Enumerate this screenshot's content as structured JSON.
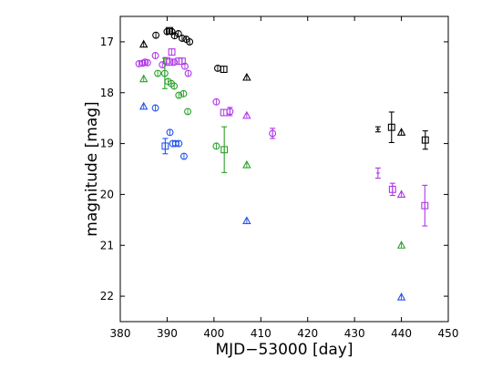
{
  "chart_data": {
    "type": "scatter",
    "title": "",
    "xlabel": "MJD−53000 [day]",
    "ylabel": "magnitude [mag]",
    "xlim": [
      380,
      450
    ],
    "ylim": [
      22.5,
      16.5
    ],
    "y_inverted": true,
    "xticks": [
      380,
      390,
      400,
      410,
      420,
      430,
      440,
      450
    ],
    "yticks": [
      17,
      18,
      19,
      20,
      21,
      22
    ],
    "grid": false,
    "legend": "none",
    "series": [
      {
        "color": "#000000",
        "points": [
          {
            "x": 385.0,
            "y": 17.05,
            "marker": "triangle"
          },
          {
            "x": 387.6,
            "y": 16.87,
            "marker": "circle"
          },
          {
            "x": 390.0,
            "y": 16.8,
            "marker": "circle"
          },
          {
            "x": 390.5,
            "y": 16.78,
            "marker": "square"
          },
          {
            "x": 391.0,
            "y": 16.8,
            "marker": "circle"
          },
          {
            "x": 391.6,
            "y": 16.88,
            "marker": "circle"
          },
          {
            "x": 392.4,
            "y": 16.84,
            "marker": "circle"
          },
          {
            "x": 393.2,
            "y": 16.93,
            "marker": "circle"
          },
          {
            "x": 394.1,
            "y": 16.95,
            "marker": "circle"
          },
          {
            "x": 394.8,
            "y": 17.0,
            "marker": "circle"
          },
          {
            "x": 400.8,
            "y": 17.52,
            "marker": "circle"
          },
          {
            "x": 402.1,
            "y": 17.54,
            "marker": "square"
          },
          {
            "x": 407.0,
            "y": 17.7,
            "marker": "triangle"
          },
          {
            "x": 435.0,
            "y": 18.72,
            "marker": "errorbar",
            "yerr": 0.05
          },
          {
            "x": 437.9,
            "y": 18.68,
            "marker": "square",
            "yerr": 0.3
          },
          {
            "x": 440.0,
            "y": 18.78,
            "marker": "triangle"
          },
          {
            "x": 445.1,
            "y": 18.93,
            "marker": "square",
            "yerr": 0.18
          }
        ]
      },
      {
        "color": "#b036e8",
        "points": [
          {
            "x": 384.0,
            "y": 17.43,
            "marker": "circle"
          },
          {
            "x": 384.8,
            "y": 17.42,
            "marker": "circle"
          },
          {
            "x": 385.3,
            "y": 17.4,
            "marker": "circle"
          },
          {
            "x": 385.8,
            "y": 17.41,
            "marker": "circle"
          },
          {
            "x": 387.5,
            "y": 17.27,
            "marker": "circle"
          },
          {
            "x": 389.0,
            "y": 17.45,
            "marker": "circle"
          },
          {
            "x": 389.9,
            "y": 17.37,
            "marker": "square"
          },
          {
            "x": 390.5,
            "y": 17.4,
            "marker": "square"
          },
          {
            "x": 391.0,
            "y": 17.2,
            "marker": "square"
          },
          {
            "x": 391.5,
            "y": 17.4,
            "marker": "circle"
          },
          {
            "x": 392.5,
            "y": 17.38,
            "marker": "square"
          },
          {
            "x": 393.2,
            "y": 17.38,
            "marker": "square"
          },
          {
            "x": 393.8,
            "y": 17.48,
            "marker": "circle"
          },
          {
            "x": 394.5,
            "y": 17.62,
            "marker": "circle"
          },
          {
            "x": 400.5,
            "y": 18.18,
            "marker": "circle"
          },
          {
            "x": 402.1,
            "y": 18.39,
            "marker": "square"
          },
          {
            "x": 403.4,
            "y": 18.37,
            "marker": "circle",
            "yerr": 0.08
          },
          {
            "x": 407.0,
            "y": 18.45,
            "marker": "triangle"
          },
          {
            "x": 412.5,
            "y": 18.8,
            "marker": "circle",
            "yerr": 0.1
          },
          {
            "x": 435.0,
            "y": 19.58,
            "marker": "errorbar",
            "yerr": 0.1
          },
          {
            "x": 438.1,
            "y": 19.9,
            "marker": "square",
            "yerr": 0.12
          },
          {
            "x": 440.0,
            "y": 20.0,
            "marker": "triangle"
          },
          {
            "x": 445.0,
            "y": 20.22,
            "marker": "square",
            "yerr": 0.4
          }
        ]
      },
      {
        "color": "#2aa02a",
        "points": [
          {
            "x": 385.0,
            "y": 17.73,
            "marker": "triangle"
          },
          {
            "x": 388.0,
            "y": 17.62,
            "marker": "circle"
          },
          {
            "x": 389.5,
            "y": 17.62,
            "marker": "circle",
            "yerr": 0.3
          },
          {
            "x": 390.2,
            "y": 17.78,
            "marker": "circle"
          },
          {
            "x": 390.9,
            "y": 17.82,
            "marker": "circle"
          },
          {
            "x": 391.5,
            "y": 17.87,
            "marker": "circle"
          },
          {
            "x": 392.5,
            "y": 18.05,
            "marker": "circle"
          },
          {
            "x": 393.5,
            "y": 18.02,
            "marker": "circle"
          },
          {
            "x": 394.4,
            "y": 18.37,
            "marker": "circle"
          },
          {
            "x": 400.5,
            "y": 19.05,
            "marker": "circle"
          },
          {
            "x": 402.2,
            "y": 19.12,
            "marker": "square",
            "yerr": 0.45
          },
          {
            "x": 407.0,
            "y": 19.42,
            "marker": "triangle"
          },
          {
            "x": 440.0,
            "y": 21.0,
            "marker": "triangle"
          }
        ]
      },
      {
        "color": "#2255ee",
        "points": [
          {
            "x": 385.0,
            "y": 18.27,
            "marker": "triangle"
          },
          {
            "x": 387.5,
            "y": 18.3,
            "marker": "circle"
          },
          {
            "x": 389.6,
            "y": 19.05,
            "marker": "square",
            "yerr": 0.15
          },
          {
            "x": 390.6,
            "y": 18.78,
            "marker": "circle"
          },
          {
            "x": 391.2,
            "y": 19.0,
            "marker": "circle"
          },
          {
            "x": 391.8,
            "y": 19.0,
            "marker": "circle"
          },
          {
            "x": 392.5,
            "y": 19.0,
            "marker": "circle"
          },
          {
            "x": 393.6,
            "y": 19.25,
            "marker": "circle"
          },
          {
            "x": 407.0,
            "y": 20.52,
            "marker": "triangle"
          },
          {
            "x": 440.0,
            "y": 22.02,
            "marker": "triangle"
          }
        ]
      }
    ]
  }
}
